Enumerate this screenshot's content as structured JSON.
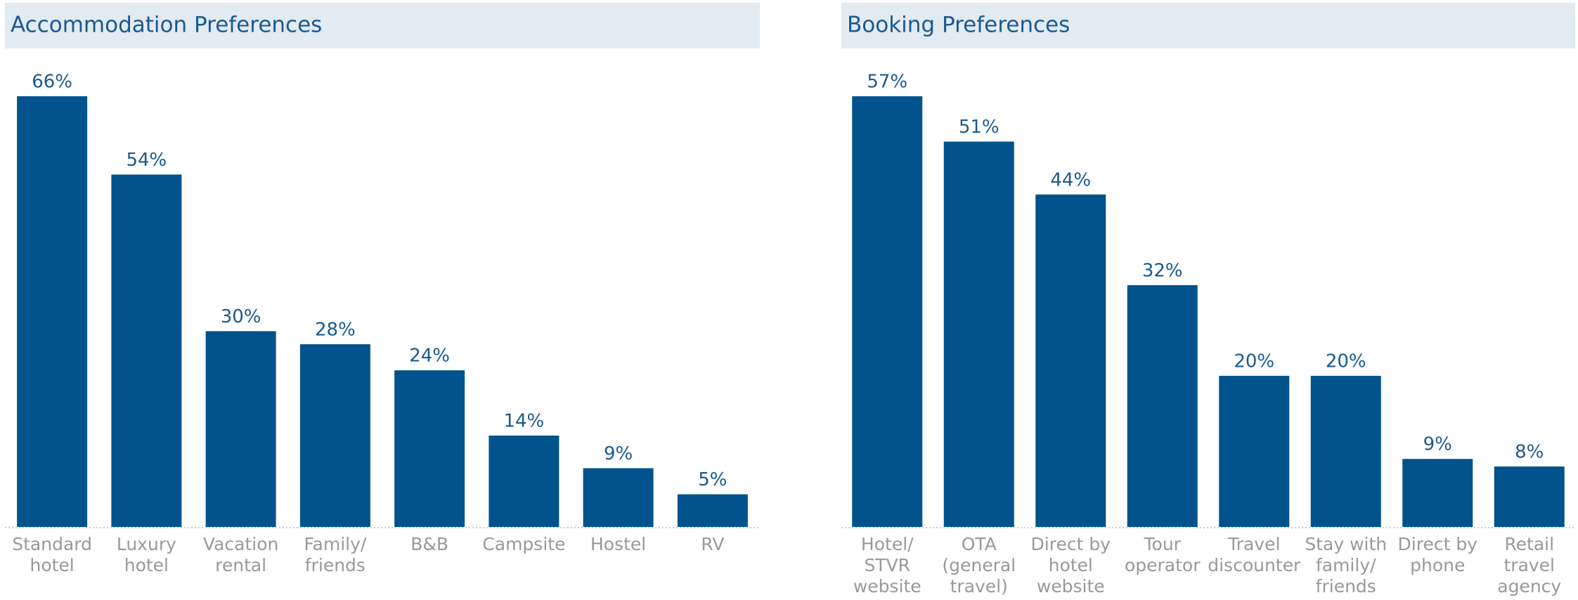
{
  "chart_data": [
    {
      "type": "bar",
      "title": "Accommodation Preferences",
      "categories": [
        "Standard\nhotel",
        "Luxury\nhotel",
        "Vacation\nrental",
        "Family/\nfriends",
        "B&B",
        "Campsite",
        "Hostel",
        "RV"
      ],
      "values": [
        66,
        54,
        30,
        28,
        24,
        14,
        9,
        5
      ],
      "value_labels": [
        "66%",
        "54%",
        "30%",
        "28%",
        "24%",
        "14%",
        "9%",
        "5%"
      ],
      "color": "#00538c",
      "ylim": [
        0,
        66
      ]
    },
    {
      "type": "bar",
      "title": "Booking Preferences",
      "categories": [
        "Hotel/\nSTVR\nwebsite",
        "OTA\n(general\ntravel)",
        "Direct by\nhotel\nwebsite",
        "Tour\noperator",
        "Travel\ndiscounter",
        "Stay with\nfamily/\nfriends",
        "Direct by\nphone",
        "Retail\ntravel\nagency"
      ],
      "values": [
        57,
        51,
        44,
        32,
        20,
        20,
        9,
        8
      ],
      "value_labels": [
        "57%",
        "51%",
        "44%",
        "32%",
        "20%",
        "20%",
        "9%",
        "8%"
      ],
      "color": "#00538c",
      "ylim": [
        0,
        57
      ]
    }
  ]
}
